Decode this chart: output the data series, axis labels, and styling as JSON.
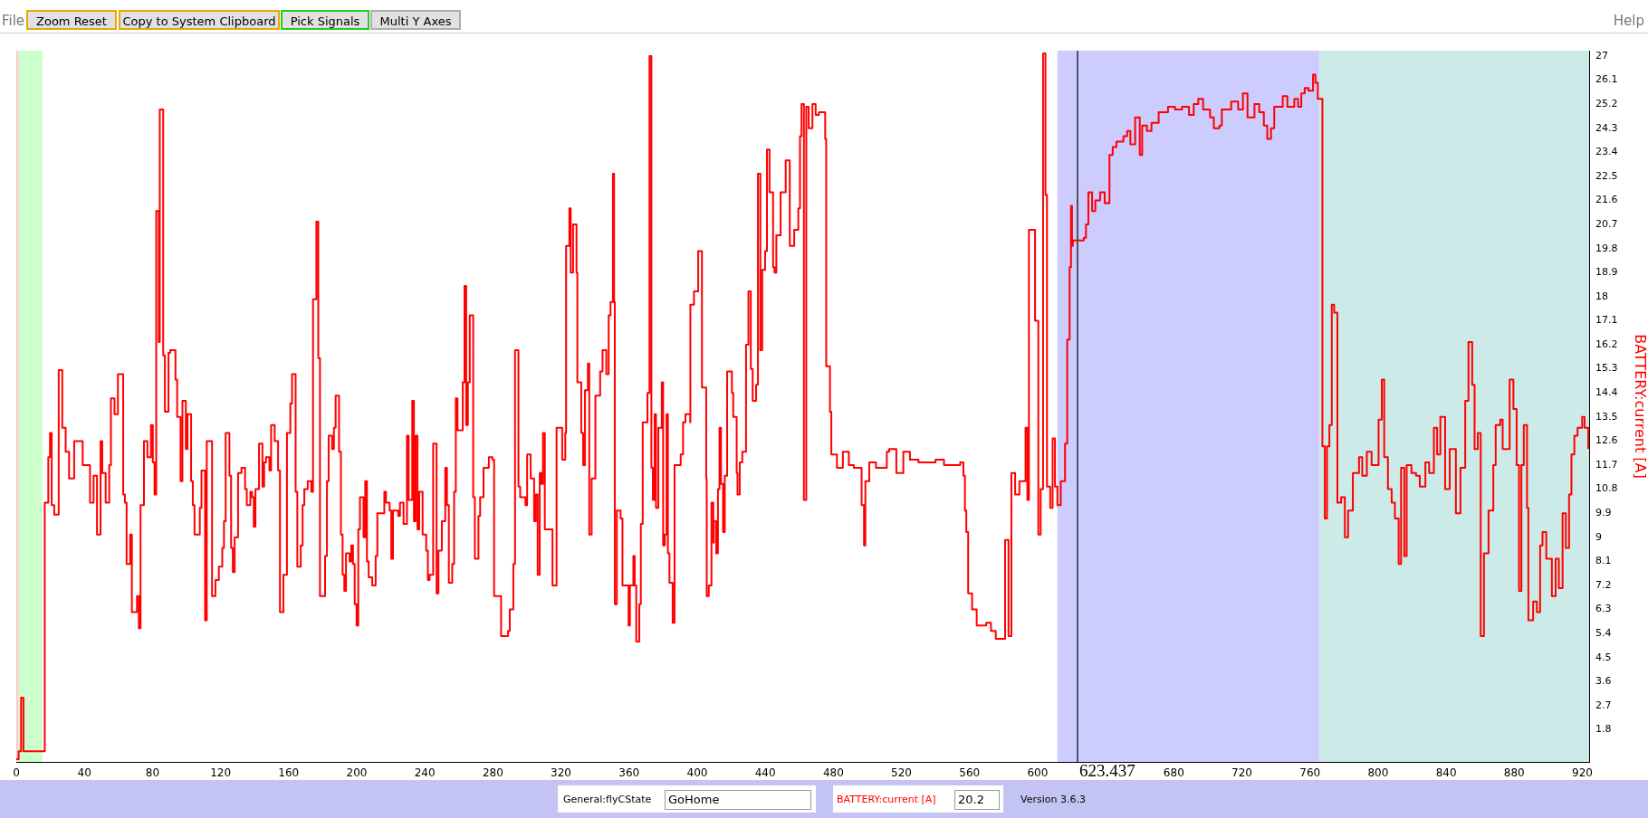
{
  "chart_data": {
    "type": "step",
    "ylabel": "BATTERY:current [A]",
    "color": "#ff0000",
    "xlim": [
      0,
      924
    ],
    "xticks": [
      0,
      40,
      80,
      120,
      160,
      200,
      240,
      280,
      320,
      360,
      400,
      440,
      480,
      520,
      560,
      600,
      680,
      720,
      760,
      800,
      840,
      880,
      920
    ],
    "ylim": [
      0.6,
      27.2
    ],
    "yticks": [
      1.8,
      2.7,
      3.6,
      4.5,
      5.4,
      6.3,
      7.2,
      8.1,
      9,
      9.9,
      10.8,
      11.7,
      12.6,
      13.5,
      14.4,
      15.3,
      16.2,
      17.1,
      18,
      18.9,
      19.8,
      20.7,
      21.6,
      22.5,
      23.4,
      24.3,
      25.2,
      26.1,
      27
    ],
    "grid": false,
    "legend": false,
    "bands": [
      {
        "axis": "x",
        "from": 0,
        "to": 1.4,
        "color": "#ffc8c8"
      },
      {
        "axis": "x",
        "from": 1.4,
        "to": 15.3,
        "color": "#ccffcc"
      },
      {
        "axis": "x",
        "from": 611.6,
        "to": 765.4,
        "color": "#ccccff"
      },
      {
        "axis": "x",
        "from": 765.4,
        "to": 924,
        "color": "#cceae8"
      }
    ],
    "ref_lines": [
      {
        "axis": "x",
        "value": 623.437,
        "label": "623.437",
        "color": "#000000"
      }
    ],
    "annotations": [
      "File",
      "Zoom Reset",
      "Copy to System Clipboard",
      "Pick Signals",
      "Multi Y Axes",
      "Help",
      "General:flyCState",
      "GoHome",
      "BATTERY:current [A]",
      "20.2",
      "Version 3.6.3"
    ],
    "x": [
      0,
      1.4,
      2.8,
      4.2,
      16.7,
      18.8,
      19.8,
      20.8,
      22.3,
      24.9,
      27,
      29,
      31,
      34,
      39,
      43.3,
      45.4,
      47.4,
      49.5,
      50.5,
      52.5,
      54.6,
      55.6,
      57.7,
      59.7,
      62.8,
      63.8,
      64.8,
      66.9,
      67.9,
      70.9,
      72,
      73,
      75,
      77,
      79.1,
      80.2,
      81.2,
      82.2,
      83.7,
      84.3,
      86.3,
      87.3,
      89.4,
      90.4,
      93.5,
      94.5,
      96.5,
      97.6,
      99.6,
      100.6,
      102.7,
      103.7,
      104.7,
      107.8,
      108.8,
      110.9,
      111.9,
      115,
      117,
      119,
      121,
      122,
      123,
      125.2,
      126.2,
      127.2,
      128.3,
      130.3,
      132.3,
      134.4,
      135.4,
      137.5,
      138.5,
      139.5,
      140.5,
      142.6,
      144.6,
      145.6,
      146.7,
      148.7,
      149.7,
      151.8,
      153.8,
      154.9,
      156.9,
      159,
      161,
      162,
      164.1,
      165.1,
      167.1,
      168.2,
      169.2,
      171.2,
      173.3,
      174.3,
      176.3,
      177.4,
      178.4,
      181.4,
      182.5,
      183.5,
      185.5,
      186.6,
      187.6,
      189.6,
      190.7,
      191.7,
      192.7,
      193.7,
      195.8,
      196.8,
      197.8,
      198.8,
      199.9,
      200.9,
      201.9,
      204,
      205,
      206,
      207,
      209.1,
      211.1,
      212.1,
      216.2,
      217.2,
      219.3,
      220.3,
      221.3,
      224.4,
      225.4,
      227.5,
      229.5,
      230.5,
      232.6,
      233.6,
      234.6,
      235.7,
      236.7,
      238.7,
      240.8,
      241.8,
      242.8,
      244.9,
      246.9,
      248,
      250,
      252,
      253,
      254.1,
      256.1,
      257.2,
      258.2,
      259.2,
      262.3,
      263.3,
      264.3,
      265.3,
      266.4,
      268.4,
      269.4,
      271.5,
      272.5,
      274.5,
      277.6,
      279.7,
      280.7,
      283.8,
      284.8,
      288.9,
      289.9,
      292,
      293,
      295,
      296,
      299.1,
      300.1,
      302.2,
      304.2,
      305.2,
      306.3,
      307.5,
      308.5,
      309.4,
      310.5,
      315,
      317.4,
      320.7,
      322.5,
      323,
      324.9,
      325.7,
      327.1,
      329.1,
      329.6,
      331.9,
      333,
      334.1,
      335.8,
      336.6,
      338,
      340.2,
      343,
      344.4,
      346.6,
      348,
      349.1,
      350.5,
      351.2,
      351.6,
      352.8,
      355,
      356.1,
      359.7,
      360.5,
      362.5,
      363.3,
      364.2,
      366,
      366.9,
      368,
      370.8,
      372,
      373.1,
      374,
      375,
      375.8,
      377.2,
      379.2,
      380,
      381,
      382,
      382.8,
      383.7,
      385.6,
      386.7,
      390.3,
      391.7,
      393.1,
      395.9,
      396,
      398.1,
      400.6,
      402.8,
      405.3,
      405.6,
      406.8,
      408.4,
      409.5,
      409.8,
      411.2,
      412.2,
      413.1,
      414,
      415.2,
      416.2,
      417.6,
      420.4,
      421.2,
      423.2,
      423.7,
      425,
      426.5,
      428.7,
      430.1,
      431.5,
      432.6,
      434.6,
      435.7,
      437.1,
      438.2,
      439.9,
      441,
      442.5,
      444.6,
      445.4,
      446.5,
      449,
      452,
      454.4,
      457,
      459.4,
      460.4,
      461.3,
      462.7,
      464.1,
      465.5,
      467.7,
      469.6,
      471.5,
      475.2,
      475.8,
      478,
      478.8,
      482.1,
      485.6,
      489.1,
      492,
      496.6,
      498,
      498.8,
      501.1,
      505,
      511.4,
      512.8,
      517,
      521.1,
      525,
      530,
      540,
      545,
      554.5,
      556.4,
      557.3,
      558.1,
      559.2,
      561.5,
      564.2,
      569.8,
      572.6,
      575.4,
      580.9,
      582.9,
      584.6,
      586.8,
      589.3,
      592.9,
      594,
      594.9,
      597.6,
      598.5,
      600.4,
      601.8,
      603.2,
      604.6,
      605.5,
      607.4,
      608.8,
      610.2,
      611.6,
      613.6,
      616.1,
      617.4,
      618.8,
      619.6,
      620.2,
      620.7,
      627.1,
      628.4,
      629.8,
      632,
      633.9,
      636.7,
      639.4,
      642.2,
      644.1,
      646.3,
      650.4,
      652.6,
      654.5,
      657.3,
      660,
      661.4,
      664.2,
      666.9,
      671.1,
      676.6,
      680.7,
      684.8,
      688.9,
      691.7,
      694.4,
      697.2,
      701.3,
      703.5,
      706.8,
      708.2,
      713.7,
      717.8,
      720.6,
      723.3,
      727.4,
      730.2,
      732.9,
      734.9,
      737.1,
      739,
      744,
      746.7,
      750.8,
      753,
      754.9,
      756.9,
      759.1,
      761.8,
      763.2,
      764.6,
      767.3,
      768.7,
      770,
      771.4,
      772.8,
      774.2,
      776.1,
      778.3,
      780.5,
      782.4,
      785.2,
      788.8,
      790.7,
      793.4,
      796.2,
      800.3,
      802.2,
      803.6,
      805.8,
      808,
      809.9,
      812.1,
      813.5,
      815.4,
      816.8,
      819.6,
      822.3,
      824.5,
      827.8,
      830,
      832.8,
      834.7,
      836.6,
      839.4,
      842.1,
      845.7,
      848.4,
      851.2,
      853.1,
      855.3,
      856.7,
      858.6,
      860.3,
      862.2,
      864.9,
      867.7,
      869.1,
      871.8,
      873.2,
      877.3,
      879.5,
      881.4,
      882.8,
      884.2,
      885.6,
      887.5,
      888.3,
      891.1,
      893.3,
      895.2,
      896.6,
      898.8,
      902.1,
      904.3,
      906.2,
      908.4,
      910.3,
      912.2,
      913.6,
      915.3,
      917.2,
      919.9,
      921.3,
      923.5
    ],
    "values": [
      0.7,
      1.0,
      3.0,
      1.0,
      10.3,
      12.0,
      12.9,
      10.2,
      9.85,
      15.25,
      13.1,
      12.2,
      11.2,
      12.6,
      11.7,
      10.3,
      11.3,
      9.1,
      12.6,
      11.4,
      10.3,
      11.7,
      14.2,
      13.6,
      15.1,
      10.6,
      10.3,
      8.0,
      9.1,
      6.2,
      6.8,
      5.6,
      10.2,
      12.6,
      12.0,
      13.2,
      11.8,
      10.6,
      21.2,
      16.3,
      25.0,
      15.8,
      13.7,
      15.9,
      16.0,
      14.9,
      13.5,
      11.1,
      14.1,
      12.3,
      13.6,
      11.1,
      10.2,
      9.1,
      10.1,
      11.5,
      5.9,
      12.6,
      6.8,
      7.4,
      7.9,
      8.6,
      9.6,
      12.9,
      11.3,
      8.6,
      7.7,
      9.0,
      11.4,
      11.6,
      10.8,
      10.2,
      10.7,
      10.5,
      9.4,
      10.8,
      12.5,
      10.9,
      11.8,
      12.0,
      11.5,
      13.2,
      12.6,
      11.5,
      6.2,
      7.6,
      12.9,
      14.0,
      15.1,
      10.7,
      7.9,
      8.7,
      10.2,
      10.8,
      11.1,
      10.7,
      17.9,
      20.8,
      15.7,
      6.8,
      8.3,
      11.1,
      12.8,
      12.3,
      13.1,
      14.3,
      12.2,
      9.1,
      7.6,
      7.0,
      8.4,
      8.1,
      8.7,
      8.0,
      6.5,
      5.7,
      9.3,
      10.5,
      9.0,
      11.1,
      8.1,
      7.5,
      7.2,
      8.3,
      9.9,
      10.7,
      10.3,
      10.0,
      8.2,
      10.0,
      9.8,
      10.3,
      9.5,
      12.8,
      10.4,
      14.1,
      9.6,
      12.8,
      9.3,
      10.7,
      9.1,
      8.5,
      7.4,
      7.6,
      12.5,
      6.9,
      8.5,
      9.6,
      11.6,
      10.2,
      7.3,
      8.0,
      10.7,
      14.2,
      13.0,
      14.8,
      18.4,
      13.2,
      14.8,
      17.3,
      10.5,
      8.2,
      9.8,
      10.5,
      11.6,
      12.0,
      11.9,
      6.8,
      6.8,
      5.3,
      5.5,
      6.3,
      8.0,
      16.0,
      10.9,
      10.5,
      10.2,
      12.1,
      11.2,
      9.6,
      10.6,
      7.6,
      11.4,
      11.0,
      12.9,
      9.3,
      7.2,
      13.1,
      11.9,
      12.9,
      19.9,
      21.3,
      18.9,
      20.7,
      18.9,
      14.8,
      12.9,
      11.7,
      14.5,
      15.5,
      9.1,
      11.2,
      14.3,
      15.2,
      16.0,
      15.1,
      17.3,
      17.8,
      22.6,
      17.8,
      6.5,
      10.0,
      9.7,
      7.2,
      5.7,
      7.2,
      8.3,
      7.2,
      5.1,
      6.5,
      9.5,
      13.3,
      14.4,
      27.0,
      11.6,
      10.4,
      13.6,
      10.1,
      13.1,
      14.8,
      8.7,
      9.1,
      13.6,
      8.4,
      7.3,
      5.8,
      11.7,
      12.1,
      13.3,
      13.6,
      13.3,
      17.7,
      18.2,
      19.7,
      14.6,
      11.2,
      6.8,
      7.2,
      10.3,
      8.8,
      9.6,
      8.4,
      10.8,
      13.1,
      11.0,
      9.2,
      11.3,
      15.2,
      14.4,
      13.5,
      11.4,
      10.6,
      11.8,
      12.2,
      16.2,
      18.2,
      15.3,
      14.1,
      14.7,
      22.6,
      16.0,
      19.0,
      19.7,
      23.5,
      21.9,
      19.1,
      18.9,
      20.3,
      21.9,
      23.1,
      19.9,
      20.5,
      21.3,
      24.0,
      25.2,
      10.4,
      25.1,
      24.3,
      25.2,
      24.8,
      24.9,
      23.9,
      15.4,
      13.7,
      12.1,
      11.6,
      12.2,
      11.7,
      11.6,
      10.2,
      8.7,
      11.1,
      11.8,
      11.6,
      12.2,
      12.3,
      11.4,
      12.2,
      11.9,
      11.8,
      11.9,
      11.7,
      11.8,
      11.3,
      10.0,
      9.2,
      6.9,
      6.3,
      5.7,
      5.8,
      5.5,
      5.2,
      8.9,
      5.3,
      11.4,
      10.6,
      11.1,
      13.1,
      10.4,
      20.5,
      20.5,
      17.1,
      9.1,
      10.8,
      27.1,
      21.8,
      10.9,
      10.1,
      12.7,
      10.9,
      10.2,
      11.1,
      12.5,
      16.4,
      19.1,
      21.4,
      19.9,
      20.1,
      20.2,
      20.7,
      21.9,
      21.2,
      21.6,
      21.9,
      21.5,
      23.3,
      23.6,
      23.8,
      24.0,
      24.2,
      23.7,
      24.7,
      23.3,
      24.4,
      24.2,
      24.5,
      24.9,
      25.1,
      25.0,
      25.1,
      24.8,
      25.2,
      25.4,
      25.0,
      24.7,
      24.3,
      24.4,
      25.0,
      25.3,
      25.0,
      25.6,
      24.7,
      25.2,
      24.9,
      24.4,
      23.9,
      24.3,
      25.1,
      25.5,
      25.1,
      25.4,
      25.1,
      25.6,
      25.8,
      25.7,
      26.3,
      26.0,
      25.4,
      12.4,
      9.7,
      12.4,
      13.2,
      17.7,
      17.4,
      10.3,
      10.5,
      9.0,
      10.0,
      11.4,
      12.0,
      11.3,
      12.2,
      11.7,
      13.4,
      14.9,
      12.0,
      10.8,
      10.3,
      9.7,
      8.0,
      11.6,
      8.3,
      11.7,
      11.4,
      11.3,
      10.9,
      11.8,
      11.4,
      13.1,
      12.1,
      13.5,
      10.8,
      12.3,
      9.9,
      11.6,
      14.1,
      16.3,
      14.7,
      12.3,
      12.9,
      5.3,
      8.4,
      10.0,
      11.7,
      13.2,
      13.4,
      12.3,
      14.9,
      13.8,
      11.7,
      7.0,
      11.7,
      13.2,
      10.1,
      5.9,
      6.6,
      6.2,
      8.7,
      9.2,
      8.2,
      6.8,
      8.2,
      7.1,
      9.9,
      8.6,
      10.6,
      12.1,
      12.8,
      13.1,
      13.5,
      13.1,
      12.3
    ]
  }
}
